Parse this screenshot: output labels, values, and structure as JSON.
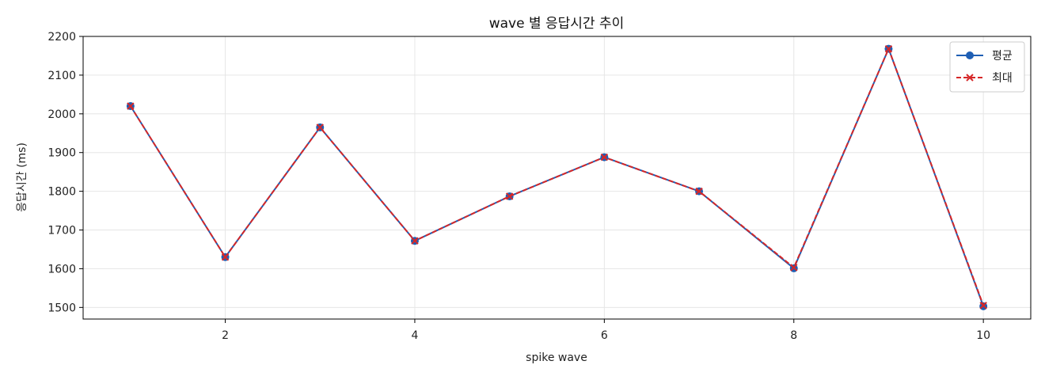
{
  "chart_data": {
    "type": "line",
    "title": "wave 별 응답시간 추이",
    "xlabel": "spike wave",
    "ylabel": "응답시간 (ms)",
    "x": [
      1,
      2,
      3,
      4,
      5,
      6,
      7,
      8,
      9,
      10
    ],
    "xlim": [
      0.5,
      10.5
    ],
    "ylim": [
      1470,
      2200
    ],
    "xticks": [
      2,
      4,
      6,
      8,
      10
    ],
    "yticks": [
      1500,
      1600,
      1700,
      1800,
      1900,
      2000,
      2100,
      2200
    ],
    "grid": true,
    "legend_position": "top-right",
    "series": [
      {
        "name": "평균",
        "values": [
          2020,
          1630,
          1965,
          1672,
          1787,
          1888,
          1800,
          1601,
          2168,
          1503
        ],
        "color": "#1f5fb4",
        "line_style": "solid",
        "marker": "circle"
      },
      {
        "name": "최대",
        "values": [
          2020,
          1630,
          1965,
          1672,
          1787,
          1888,
          1800,
          1603,
          2168,
          1505
        ],
        "color": "#d62728",
        "line_style": "dashed",
        "marker": "x"
      }
    ]
  }
}
